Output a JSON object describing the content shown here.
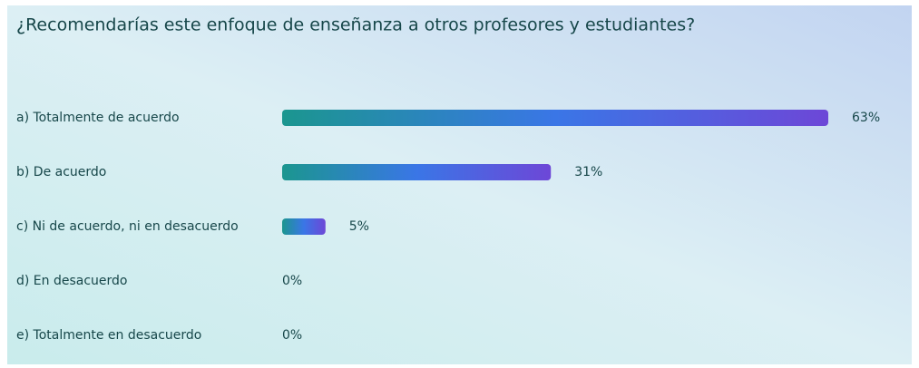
{
  "chart_data": {
    "type": "barh",
    "title": "¿Recomendarías este enfoque de enseñanza a otros profesores y estudiantes?",
    "categories": [
      "a) Totalmente de acuerdo",
      "b) De acuerdo",
      "c) Ni de acuerdo, ni en desacuerdo",
      "d) En desacuerdo",
      "e) Totalmente en desacuerdo"
    ],
    "values": [
      63,
      31,
      5,
      0,
      0
    ],
    "value_labels": [
      "63%",
      "31%",
      "5%",
      "0%",
      "0%"
    ],
    "colors": [
      "#1b968f",
      "#3a76e6",
      "#6d47d7"
    ]
  }
}
